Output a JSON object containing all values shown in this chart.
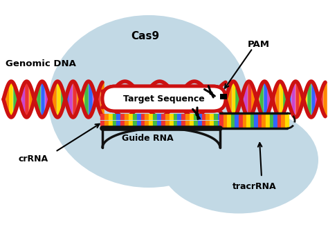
{
  "bubble_color": "#c2d9e5",
  "dna_red": "#cc1111",
  "dna_colors": [
    "#ee3333",
    "#ff8800",
    "#ffdd00",
    "#44bb44",
    "#3366ff",
    "#cc44cc"
  ],
  "target_box_fill": "#ffffff",
  "target_box_edge": "#cc1111",
  "guide_colors": [
    "#ee3333",
    "#ff8800",
    "#ffdd00",
    "#44bb44",
    "#3366ff"
  ],
  "black": "#111111",
  "labels": {
    "genomic_dna": "Genomic DNA",
    "cas9": "Cas9",
    "pam": "PAM",
    "target_seq": "Target Sequence",
    "guide_rna": "Guide RNA",
    "crRNA": "crRNA",
    "tracrRNA": "tracrRNA"
  },
  "figsize": [
    4.74,
    3.32
  ],
  "dpi": 100
}
